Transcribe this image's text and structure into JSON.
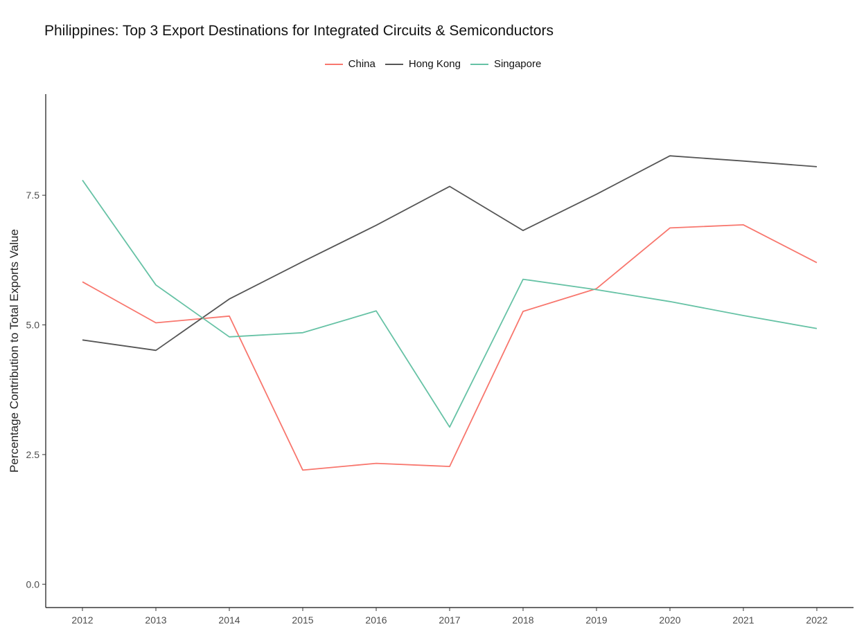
{
  "chart_data": {
    "type": "line",
    "title": "Philippines: Top 3 Export Destinations for Integrated Circuits & Semiconductors",
    "xlabel": "",
    "ylabel": "Percentage Contribution to Total Exports Value",
    "x": [
      2012,
      2013,
      2014,
      2015,
      2016,
      2017,
      2018,
      2019,
      2020,
      2021,
      2022
    ],
    "x_tick_labels": [
      "2012",
      "2013",
      "2014",
      "2015",
      "2016",
      "2017",
      "2018",
      "2019",
      "2020",
      "2021",
      "2022"
    ],
    "y_ticks": [
      0.0,
      2.5,
      5.0,
      7.5
    ],
    "y_tick_labels": [
      "0.0",
      "2.5",
      "5.0",
      "7.5"
    ],
    "ylim": [
      -0.45,
      9.45
    ],
    "xlim": [
      2011.5,
      2022.5
    ],
    "grid": false,
    "legend_position": "top",
    "series": [
      {
        "name": "China",
        "color": "#F8766D",
        "values": [
          5.83,
          5.04,
          5.17,
          2.2,
          2.33,
          2.27,
          5.26,
          5.7,
          6.87,
          6.93,
          6.2
        ]
      },
      {
        "name": "Hong Kong",
        "color": "#555555",
        "values": [
          4.71,
          4.51,
          5.5,
          6.22,
          6.92,
          7.67,
          6.82,
          7.52,
          8.26,
          8.16,
          8.05
        ]
      },
      {
        "name": "Singapore",
        "color": "#66C2A5",
        "values": [
          7.79,
          5.77,
          4.77,
          4.85,
          5.27,
          3.03,
          5.88,
          5.68,
          5.45,
          5.18,
          4.93
        ]
      }
    ]
  }
}
